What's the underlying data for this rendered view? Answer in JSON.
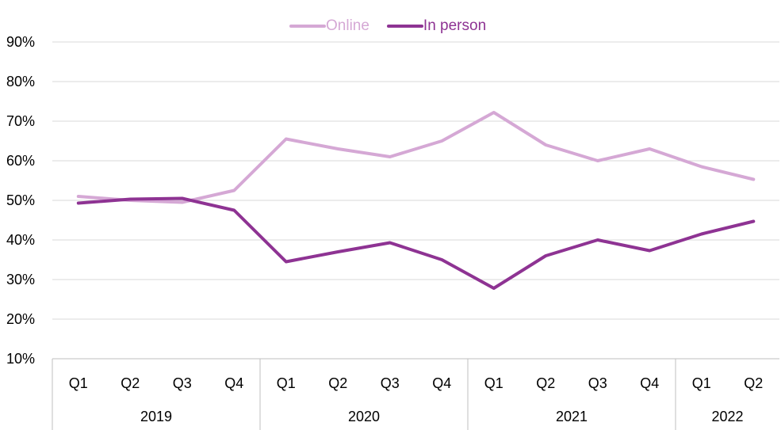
{
  "chart_data": {
    "type": "line",
    "title": "",
    "xlabel": "",
    "ylabel": "",
    "ylim": [
      0.1,
      0.9
    ],
    "yticks": [
      "10%",
      "20%",
      "30%",
      "40%",
      "50%",
      "60%",
      "70%",
      "80%",
      "90%"
    ],
    "ytick_values": [
      0.1,
      0.2,
      0.3,
      0.4,
      0.5,
      0.6,
      0.7,
      0.8,
      0.9
    ],
    "grid": true,
    "legend_position": "top-center",
    "categories": [
      "Q1",
      "Q2",
      "Q3",
      "Q4",
      "Q1",
      "Q2",
      "Q3",
      "Q4",
      "Q1",
      "Q2",
      "Q3",
      "Q4",
      "Q1",
      "Q2"
    ],
    "groups": [
      {
        "label": "2019",
        "count": 4
      },
      {
        "label": "2020",
        "count": 4
      },
      {
        "label": "2021",
        "count": 4
      },
      {
        "label": "2022",
        "count": 2
      }
    ],
    "series": [
      {
        "name": "Online",
        "color": "#d5a8d5",
        "values": [
          0.51,
          0.5,
          0.495,
          0.525,
          0.655,
          0.63,
          0.61,
          0.65,
          0.722,
          0.64,
          0.6,
          0.63,
          0.585,
          0.553
        ]
      },
      {
        "name": "In person",
        "color": "#8e3393",
        "values": [
          0.493,
          0.503,
          0.505,
          0.475,
          0.345,
          0.37,
          0.393,
          0.35,
          0.278,
          0.36,
          0.4,
          0.373,
          0.415,
          0.447
        ]
      }
    ]
  }
}
